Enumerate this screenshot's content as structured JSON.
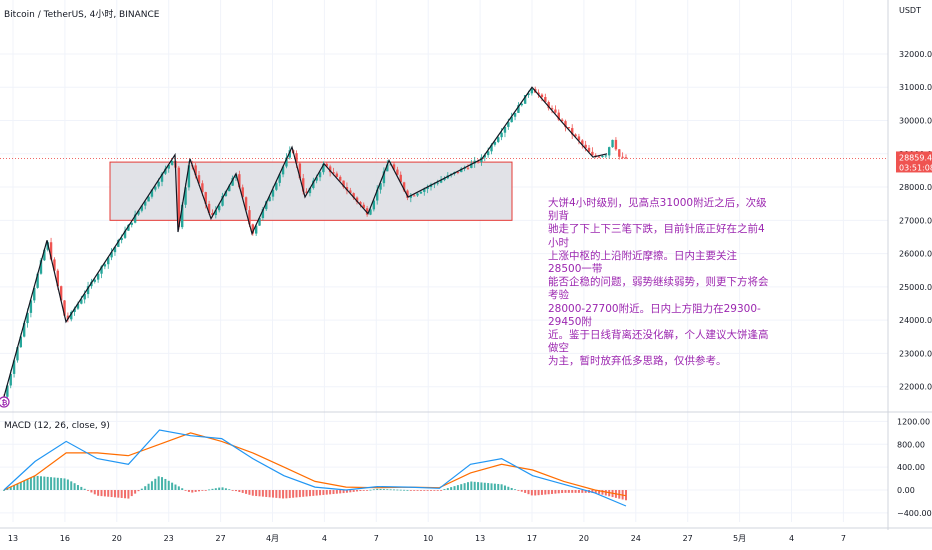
{
  "chart_data": [
    {
      "type": "candlestick",
      "title": "Bitcoin / TetherUS, 4小时, BINANCE",
      "currency": "USDT",
      "y_ticks": [
        22000,
        23000,
        24000,
        25000,
        26000,
        27000,
        28000,
        29000,
        30000,
        31000,
        32000
      ],
      "y_tick_labels": [
        "22000.00",
        "23000.00",
        "24000.00",
        "25000.00",
        "26000.00",
        "27000.00",
        "28000.00",
        "29000.00",
        "30000.00",
        "31000.00",
        "32000.00"
      ],
      "ylim": [
        21300,
        32900
      ],
      "x_ticks": [
        "13",
        "16",
        "20",
        "23",
        "27",
        "4月",
        "4",
        "7",
        "10",
        "13",
        "17",
        "20",
        "24",
        "27",
        "5月",
        "4",
        "7"
      ],
      "last_price_label": "28859.40",
      "countdown_label": "03:51:08",
      "last_price": 28859.4,
      "colors": {
        "up": "#26a69a",
        "down": "#ef5350",
        "accent": "#ef5350",
        "range_box_fill": "#dcdde3",
        "range_box_border": "#e53935",
        "wave_line": "#131722",
        "note": "#9c27b0"
      },
      "range_box": {
        "low": 27000,
        "high": 28750
      },
      "wave_pivots": [
        21700,
        26400,
        23950,
        28970,
        26650,
        28850,
        27050,
        28400,
        26600,
        29200,
        27700,
        28700,
        27200,
        28800,
        27700,
        28850,
        31000,
        29950,
        28900,
        29000
      ],
      "bar_count": 186
    },
    {
      "type": "macd_histogram",
      "title": "MACD (12, 26, close, 9)",
      "y_ticks": [
        -400,
        0,
        400,
        800,
        1200
      ],
      "y_tick_labels": [
        "−400.00",
        "0.00",
        "400.00",
        "800.00",
        "1200.00"
      ],
      "ylim": [
        -560,
        1330
      ],
      "colors": {
        "macd": "#2196f3",
        "signal": "#ff6d00",
        "hist_up": "#26a69a",
        "hist_down": "#ef5350"
      },
      "macd_keypoints": [
        0,
        500,
        850,
        550,
        450,
        1050,
        950,
        900,
        550,
        250,
        50,
        0,
        60,
        50,
        30,
        450,
        550,
        250,
        100,
        -50,
        -280
      ],
      "signal_keypoints": [
        0,
        250,
        650,
        650,
        600,
        800,
        1000,
        850,
        650,
        400,
        150,
        50,
        40,
        50,
        40,
        300,
        450,
        350,
        150,
        0,
        -100
      ]
    }
  ],
  "annotation": {
    "lines": [
      "大饼4小时级别，见高点31000附近之后，次级别背",
      "驰走了下上下三笔下跌，目前针底正好在之前4小时",
      "上涨中枢的上沿附近摩擦。日内主要关注28500一带",
      "能否企稳的问题，弱势继续弱势，则更下方将会考验",
      "28000-27700附近。日内上方阻力在29300-29450附",
      "近。鉴于日线背离还没化解，个人建议大饼逢高做空",
      "为主，暂时放弃低多思路，仅供参考。"
    ]
  }
}
